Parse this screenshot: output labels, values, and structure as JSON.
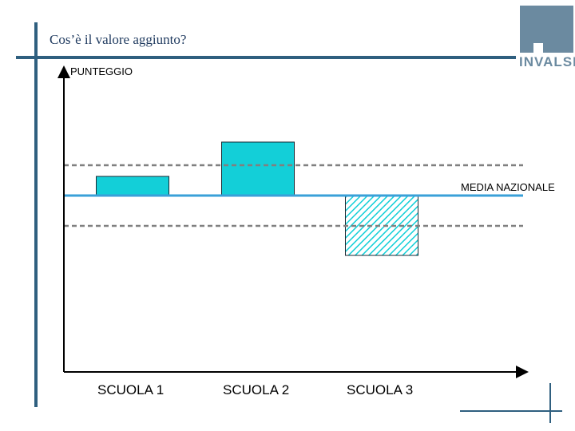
{
  "slide": {
    "title": "Cos’è il valore aggiunto?"
  },
  "logo": {
    "text": "INVALSI"
  },
  "colors": {
    "frame": "#2f5f7f",
    "bar": "#13cfd8",
    "mean_line": "#3aa0d8",
    "dashed": "#808080",
    "logo": "#6b8aa0"
  },
  "chart_data": {
    "type": "bar",
    "ylabel": "PUNTEGGIO",
    "reference_line_label": "MEDIA NAZIONALE",
    "categories": [
      "SCUOLA 1",
      "SCUOLA 2",
      "SCUOLA 3"
    ],
    "values": [
      24,
      67,
      -75
    ],
    "reference_value": 0,
    "band": [
      38,
      -38
    ],
    "bar_styles": [
      "solid",
      "solid",
      "hatched"
    ]
  }
}
